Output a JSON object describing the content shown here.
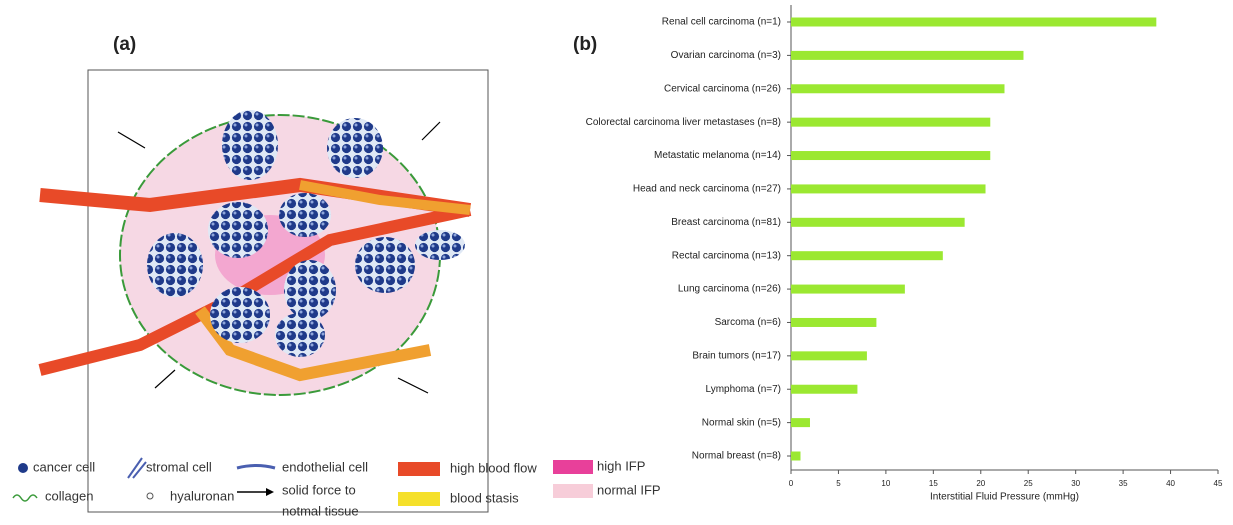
{
  "panels": {
    "a": "(a)",
    "b": "(b)"
  },
  "legend": [
    {
      "label": "cancer cell"
    },
    {
      "label": "stromal cell"
    },
    {
      "label": "endothelial cell"
    },
    {
      "label": "high blood flow"
    },
    {
      "label": "high IFP"
    },
    {
      "label": "collagen"
    },
    {
      "label": "hyaluronan"
    },
    {
      "lines": [
        "solid force to",
        "notmal tissue"
      ]
    },
    {
      "label": "blood stasis"
    },
    {
      "label": "normal IFP"
    }
  ],
  "chart_data": {
    "type": "hbar",
    "xlabel": "Interstitial Fluid Pressure (mmHg)",
    "categories": [
      "Renal cell carcinoma (n=1)",
      "Ovarian carcinoma (n=3)",
      "Cervical carcinoma (n=26)",
      "Colorectal carcinoma liver metastases (n=8)",
      "Metastatic melanoma (n=14)",
      "Head and neck carcinoma (n=27)",
      "Breast carcinoma (n=81)",
      "Rectal carcinoma (n=13)",
      "Lung carcinoma (n=26)",
      "Sarcoma (n=6)",
      "Brain tumors (n=17)",
      "Lymphoma (n=7)",
      "Normal skin (n=5)",
      "Normal breast (n=8)"
    ],
    "values": [
      38.5,
      24.5,
      22.5,
      21,
      21,
      20.5,
      18.3,
      16,
      12,
      9,
      8,
      7,
      2,
      1
    ],
    "color": "#9be831",
    "xlim": [
      0,
      45
    ],
    "xticks": [
      0,
      5,
      10,
      15,
      20,
      25,
      30,
      35,
      40,
      45
    ]
  }
}
